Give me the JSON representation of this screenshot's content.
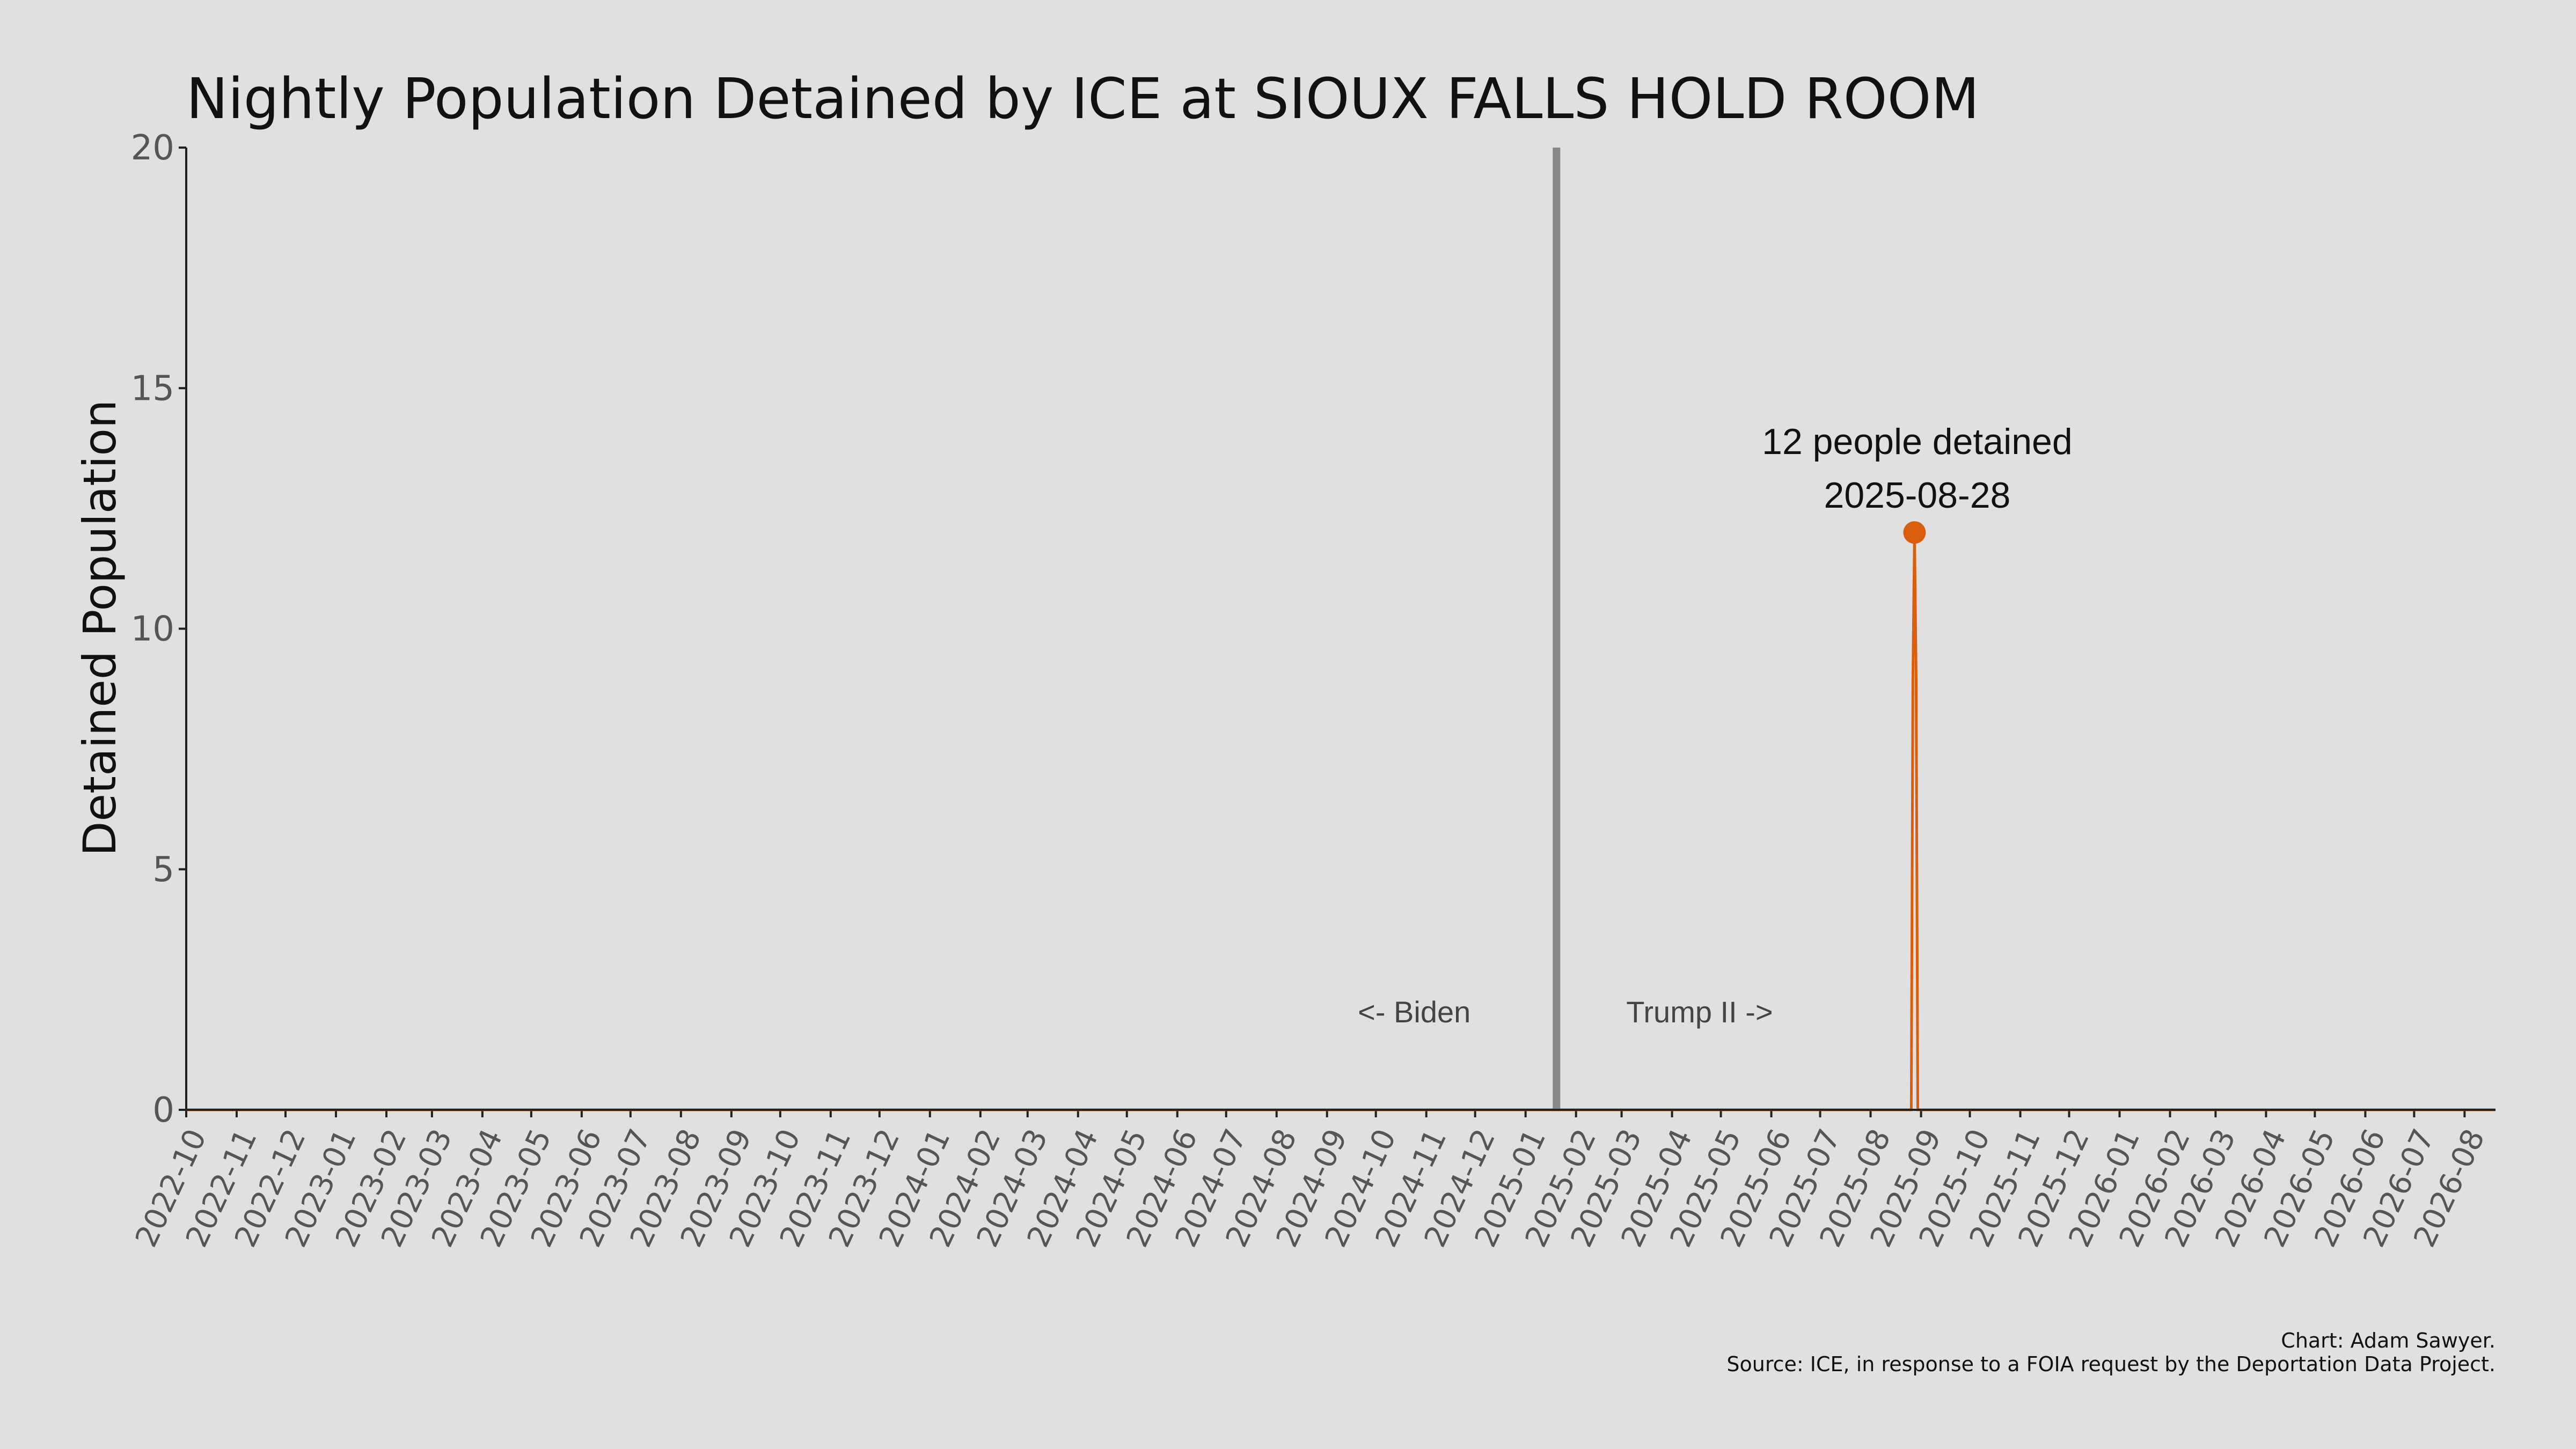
{
  "chart_data": {
    "type": "line",
    "title": "Nightly Population Detained by ICE at SIOUX FALLS HOLD ROOM",
    "xlabel": "",
    "ylabel": "Detained Population",
    "ylim": [
      0,
      20
    ],
    "yticks": [
      0,
      5,
      10,
      15,
      20
    ],
    "xlim": [
      "2022-10-01",
      "2026-08-20"
    ],
    "xticks": [
      "2022-10",
      "2022-11",
      "2022-12",
      "2023-01",
      "2023-02",
      "2023-03",
      "2023-04",
      "2023-05",
      "2023-06",
      "2023-07",
      "2023-08",
      "2023-09",
      "2023-10",
      "2023-11",
      "2023-12",
      "2024-01",
      "2024-02",
      "2024-03",
      "2024-04",
      "2024-05",
      "2024-06",
      "2024-07",
      "2024-08",
      "2024-09",
      "2024-10",
      "2024-11",
      "2024-12",
      "2025-01",
      "2025-02",
      "2025-03",
      "2025-04",
      "2025-05",
      "2025-06",
      "2025-07",
      "2025-08",
      "2025-09",
      "2025-10",
      "2025-11",
      "2025-12",
      "2026-01",
      "2026-02",
      "2026-03",
      "2026-04",
      "2026-05",
      "2026-06",
      "2026-07",
      "2026-08"
    ],
    "grid": false,
    "series": [
      {
        "color": "#d95f0e",
        "x": [
          "2022-10-01",
          "2025-08-26",
          "2025-08-27",
          "2025-08-28",
          "2025-08-29",
          "2025-08-30",
          "2026-08-20"
        ],
        "y": [
          0,
          0,
          9,
          12,
          9,
          0,
          0
        ]
      }
    ],
    "peak": {
      "x": "2025-08-28",
      "y": 12,
      "color": "#d95f0e"
    },
    "annotations": {
      "peak_line1": "12 people detained",
      "peak_line2": "2025-08-28",
      "biden_label": "<- Biden",
      "trump_label": "Trump II ->"
    },
    "inauguration_line": {
      "x": "2025-01-20",
      "color": "#888888"
    },
    "caption_line1": "Chart: Adam Sawyer.",
    "caption_line2": "Source: ICE, in response to a FOIA request by the Deportation Data Project."
  }
}
